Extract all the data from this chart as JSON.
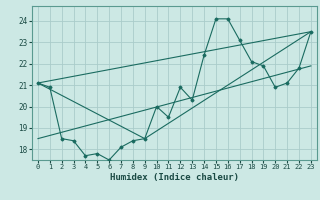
{
  "title": "",
  "xlabel": "Humidex (Indice chaleur)",
  "ylabel": "",
  "bg_color": "#cce8e4",
  "grid_color": "#aaccca",
  "line_color": "#1a6b60",
  "xlim": [
    -0.5,
    23.5
  ],
  "ylim": [
    17.5,
    24.7
  ],
  "xticks": [
    0,
    1,
    2,
    3,
    4,
    5,
    6,
    7,
    8,
    9,
    10,
    11,
    12,
    13,
    14,
    15,
    16,
    17,
    18,
    19,
    20,
    21,
    22,
    23
  ],
  "yticks": [
    18,
    19,
    20,
    21,
    22,
    23,
    24
  ],
  "lines": [
    {
      "x": [
        0,
        1,
        2,
        3,
        4,
        5,
        6,
        7,
        8,
        9,
        10,
        11,
        12,
        13,
        14,
        15,
        16,
        17,
        18,
        19,
        20,
        21,
        22,
        23
      ],
      "y": [
        21.1,
        20.9,
        18.5,
        18.4,
        17.7,
        17.8,
        17.5,
        18.1,
        18.4,
        18.5,
        20.0,
        19.5,
        20.9,
        20.3,
        22.4,
        24.1,
        24.1,
        23.1,
        22.1,
        21.9,
        20.9,
        21.1,
        21.8,
        23.5
      ],
      "has_marker": true
    },
    {
      "x": [
        0,
        9,
        23
      ],
      "y": [
        21.1,
        18.5,
        23.5
      ],
      "has_marker": false
    },
    {
      "x": [
        0,
        23
      ],
      "y": [
        18.5,
        21.9
      ],
      "has_marker": false
    },
    {
      "x": [
        0,
        23
      ],
      "y": [
        21.1,
        23.5
      ],
      "has_marker": false
    }
  ]
}
